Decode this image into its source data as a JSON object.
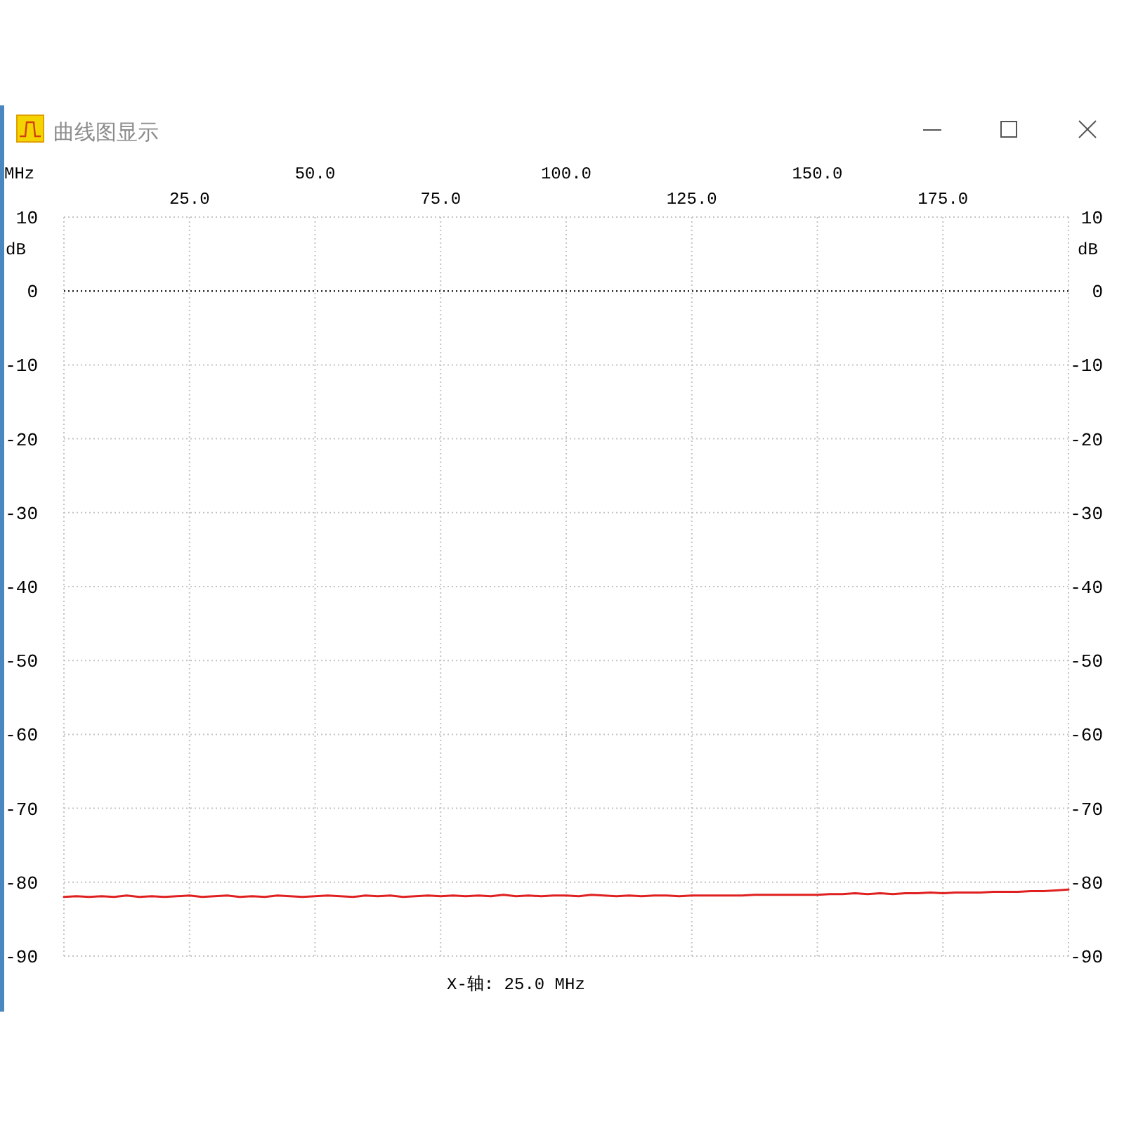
{
  "chart_data": {
    "type": "line",
    "title": "曲线图显示",
    "x2label": "MHz",
    "ylabel": "dB",
    "y2label": "dB",
    "annotations": [
      "X-轴: 25.0 MHz"
    ],
    "x": [
      0,
      2.5,
      5,
      7.5,
      10,
      12.5,
      15,
      17.5,
      20,
      22.5,
      25,
      27.5,
      30,
      32.5,
      35,
      37.5,
      40,
      42.5,
      45,
      47.5,
      50,
      52.5,
      55,
      57.5,
      60,
      62.5,
      65,
      67.5,
      70,
      72.5,
      75,
      77.5,
      80,
      82.5,
      85,
      87.5,
      90,
      92.5,
      95,
      97.5,
      100,
      102.5,
      105,
      107.5,
      110,
      112.5,
      115,
      117.5,
      120,
      122.5,
      125,
      127.5,
      130,
      132.5,
      135,
      137.5,
      140,
      142.5,
      145,
      147.5,
      150,
      152.5,
      155,
      157.5,
      160,
      162.5,
      165,
      167.5,
      170,
      172.5,
      175,
      177.5,
      180,
      182.5,
      185,
      187.5,
      190,
      192.5,
      195,
      197.5,
      200
    ],
    "values": [
      -82.0,
      -81.9,
      -82.0,
      -81.9,
      -82.0,
      -81.8,
      -82.0,
      -81.9,
      -82.0,
      -81.9,
      -81.8,
      -82.0,
      -81.9,
      -81.8,
      -82.0,
      -81.9,
      -82.0,
      -81.8,
      -81.9,
      -82.0,
      -81.9,
      -81.8,
      -81.9,
      -82.0,
      -81.8,
      -81.9,
      -81.8,
      -82.0,
      -81.9,
      -81.8,
      -81.9,
      -81.8,
      -81.9,
      -81.8,
      -81.9,
      -81.7,
      -81.9,
      -81.8,
      -81.9,
      -81.8,
      -81.8,
      -81.9,
      -81.7,
      -81.8,
      -81.9,
      -81.8,
      -81.9,
      -81.8,
      -81.8,
      -81.9,
      -81.8,
      -81.8,
      -81.8,
      -81.8,
      -81.8,
      -81.7,
      -81.7,
      -81.7,
      -81.7,
      -81.7,
      -81.7,
      -81.6,
      -81.6,
      -81.5,
      -81.6,
      -81.5,
      -81.6,
      -81.5,
      -81.5,
      -81.4,
      -81.5,
      -81.4,
      -81.4,
      -81.4,
      -81.3,
      -81.3,
      -81.3,
      -81.2,
      -81.2,
      -81.1,
      -81.0
    ],
    "color": "#e02020",
    "xlim": [
      0,
      200
    ],
    "xticks": [
      {
        "value": 25,
        "label": "25.0"
      },
      {
        "value": 75,
        "label": "75.0"
      },
      {
        "value": 125,
        "label": "125.0"
      },
      {
        "value": 175,
        "label": "175.0"
      }
    ],
    "x2lim": [
      0,
      200
    ],
    "x2ticks": [
      {
        "value": 50,
        "label": "50.0"
      },
      {
        "value": 100,
        "label": "100.0"
      },
      {
        "value": 150,
        "label": "150.0"
      }
    ],
    "ylim": [
      -90,
      10
    ],
    "yticks": [
      10,
      0,
      -10,
      -20,
      -30,
      -40,
      -50,
      -60,
      -70,
      -80,
      -90
    ],
    "y2lim": [
      -90,
      10
    ],
    "y2ticks": [
      10,
      0,
      -10,
      -20,
      -30,
      -40,
      -50,
      -60,
      -70,
      -80,
      -90
    ],
    "grid": true,
    "ref_lines": [
      {
        "axis": "y",
        "value": 0,
        "color": "#000000",
        "line_style": "dotted"
      }
    ]
  }
}
